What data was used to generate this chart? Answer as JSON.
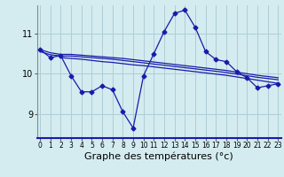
{
  "background_color": "#d4ecf0",
  "grid_color": "#aecdd6",
  "line_color": "#1a1aaa",
  "xlabel": "Graphe des températures (°c)",
  "xlabel_fontsize": 8,
  "yticks": [
    9,
    10,
    11
  ],
  "xticks": [
    0,
    1,
    2,
    3,
    4,
    5,
    6,
    7,
    8,
    9,
    10,
    11,
    12,
    13,
    14,
    15,
    16,
    17,
    18,
    19,
    20,
    21,
    22,
    23
  ],
  "xlim": [
    -0.3,
    23.3
  ],
  "ylim": [
    8.4,
    11.7
  ],
  "line1_x": [
    0,
    1,
    2,
    3,
    4,
    5,
    6,
    7,
    8,
    9,
    10,
    11,
    12,
    13,
    14,
    15,
    16,
    17,
    18,
    19,
    20,
    21,
    22,
    23
  ],
  "line1_y": [
    10.6,
    10.4,
    10.45,
    9.95,
    9.55,
    9.55,
    9.7,
    9.6,
    9.05,
    8.65,
    9.95,
    10.5,
    11.05,
    11.5,
    11.58,
    11.15,
    10.55,
    10.35,
    10.3,
    10.05,
    9.9,
    9.65,
    9.7,
    9.75
  ],
  "line2_x": [
    0,
    1,
    2,
    3,
    4,
    5,
    6,
    7,
    8,
    9,
    10,
    11,
    12,
    13,
    14,
    15,
    16,
    17,
    18,
    19,
    20,
    21,
    22,
    23
  ],
  "line2_y": [
    10.6,
    10.52,
    10.48,
    10.48,
    10.46,
    10.44,
    10.42,
    10.4,
    10.38,
    10.35,
    10.32,
    10.29,
    10.26,
    10.23,
    10.2,
    10.17,
    10.14,
    10.11,
    10.08,
    10.04,
    10.0,
    9.96,
    9.93,
    9.9
  ],
  "line3_x": [
    0,
    1,
    2,
    3,
    4,
    5,
    6,
    7,
    8,
    9,
    10,
    11,
    12,
    13,
    14,
    15,
    16,
    17,
    18,
    19,
    20,
    21,
    22,
    23
  ],
  "line3_y": [
    10.55,
    10.47,
    10.44,
    10.44,
    10.42,
    10.4,
    10.38,
    10.36,
    10.33,
    10.3,
    10.27,
    10.24,
    10.21,
    10.18,
    10.15,
    10.12,
    10.09,
    10.06,
    10.03,
    9.99,
    9.95,
    9.91,
    9.88,
    9.85
  ],
  "line4_x": [
    2,
    3,
    4,
    5,
    6,
    7,
    8,
    9,
    10,
    11,
    12,
    13,
    14,
    15,
    16,
    17,
    18,
    19,
    20,
    21,
    22,
    23
  ],
  "line4_y": [
    10.4,
    10.38,
    10.36,
    10.33,
    10.3,
    10.28,
    10.25,
    10.22,
    10.2,
    10.17,
    10.14,
    10.11,
    10.08,
    10.05,
    10.02,
    9.99,
    9.96,
    9.92,
    9.88,
    9.84,
    9.8,
    9.76
  ]
}
